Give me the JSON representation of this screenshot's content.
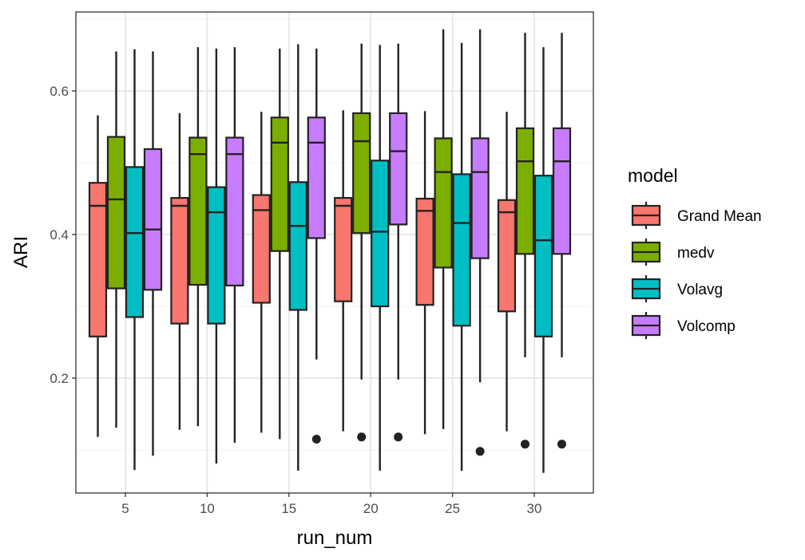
{
  "chart_data": {
    "type": "boxplot",
    "xlabel": "run_num",
    "ylabel": "ARI",
    "categories": [
      "5",
      "10",
      "15",
      "20",
      "25",
      "30"
    ],
    "ylim": [
      0.04,
      0.71
    ],
    "yticks": [
      0.2,
      0.4,
      0.6
    ],
    "ytick_labels": [
      "0.2",
      "0.4",
      "0.6"
    ],
    "grid": true,
    "legend": {
      "title": "model",
      "position": "right"
    },
    "series": [
      {
        "name": "Grand Mean",
        "color": "#F8766D",
        "boxes": [
          {
            "min": 0.118,
            "q1": 0.258,
            "median": 0.44,
            "q3": 0.472,
            "max": 0.566,
            "outliers": []
          },
          {
            "min": 0.128,
            "q1": 0.276,
            "median": 0.44,
            "q3": 0.451,
            "max": 0.569,
            "outliers": []
          },
          {
            "min": 0.124,
            "q1": 0.305,
            "median": 0.434,
            "q3": 0.455,
            "max": 0.571,
            "outliers": []
          },
          {
            "min": 0.126,
            "q1": 0.307,
            "median": 0.44,
            "q3": 0.451,
            "max": 0.573,
            "outliers": []
          },
          {
            "min": 0.122,
            "q1": 0.302,
            "median": 0.433,
            "q3": 0.45,
            "max": 0.572,
            "outliers": []
          },
          {
            "min": 0.126,
            "q1": 0.293,
            "median": 0.431,
            "q3": 0.448,
            "max": 0.571,
            "outliers": []
          }
        ]
      },
      {
        "name": "medv",
        "color": "#7CAE00",
        "boxes": [
          {
            "min": 0.131,
            "q1": 0.325,
            "median": 0.449,
            "q3": 0.536,
            "max": 0.655,
            "outliers": []
          },
          {
            "min": 0.133,
            "q1": 0.33,
            "median": 0.512,
            "q3": 0.535,
            "max": 0.661,
            "outliers": []
          },
          {
            "min": 0.115,
            "q1": 0.377,
            "median": 0.528,
            "q3": 0.563,
            "max": 0.659,
            "outliers": []
          },
          {
            "min": 0.198,
            "q1": 0.402,
            "median": 0.53,
            "q3": 0.569,
            "max": 0.666,
            "outliers": [
              0.118
            ]
          },
          {
            "min": 0.129,
            "q1": 0.354,
            "median": 0.487,
            "q3": 0.534,
            "max": 0.686,
            "outliers": []
          },
          {
            "min": 0.229,
            "q1": 0.373,
            "median": 0.502,
            "q3": 0.548,
            "max": 0.681,
            "outliers": [
              0.108
            ]
          }
        ]
      },
      {
        "name": "Volavg",
        "color": "#00BFC4",
        "boxes": [
          {
            "min": 0.072,
            "q1": 0.285,
            "median": 0.402,
            "q3": 0.494,
            "max": 0.658,
            "outliers": []
          },
          {
            "min": 0.081,
            "q1": 0.276,
            "median": 0.431,
            "q3": 0.466,
            "max": 0.659,
            "outliers": []
          },
          {
            "min": 0.071,
            "q1": 0.295,
            "median": 0.412,
            "q3": 0.473,
            "max": 0.665,
            "outliers": []
          },
          {
            "min": 0.071,
            "q1": 0.3,
            "median": 0.404,
            "q3": 0.503,
            "max": 0.664,
            "outliers": []
          },
          {
            "min": 0.071,
            "q1": 0.273,
            "median": 0.416,
            "q3": 0.484,
            "max": 0.667,
            "outliers": []
          },
          {
            "min": 0.068,
            "q1": 0.258,
            "median": 0.392,
            "q3": 0.482,
            "max": 0.661,
            "outliers": []
          }
        ]
      },
      {
        "name": "Volcomp",
        "color": "#C77CFF",
        "boxes": [
          {
            "min": 0.092,
            "q1": 0.323,
            "median": 0.407,
            "q3": 0.519,
            "max": 0.655,
            "outliers": []
          },
          {
            "min": 0.11,
            "q1": 0.329,
            "median": 0.512,
            "q3": 0.535,
            "max": 0.661,
            "outliers": []
          },
          {
            "min": 0.226,
            "q1": 0.395,
            "median": 0.528,
            "q3": 0.563,
            "max": 0.659,
            "outliers": [
              0.115
            ]
          },
          {
            "min": 0.198,
            "q1": 0.414,
            "median": 0.516,
            "q3": 0.569,
            "max": 0.666,
            "outliers": [
              0.118
            ]
          },
          {
            "min": 0.194,
            "q1": 0.367,
            "median": 0.487,
            "q3": 0.534,
            "max": 0.686,
            "outliers": [
              0.098
            ]
          },
          {
            "min": 0.229,
            "q1": 0.373,
            "median": 0.502,
            "q3": 0.548,
            "max": 0.681,
            "outliers": [
              0.108
            ]
          }
        ]
      }
    ]
  }
}
